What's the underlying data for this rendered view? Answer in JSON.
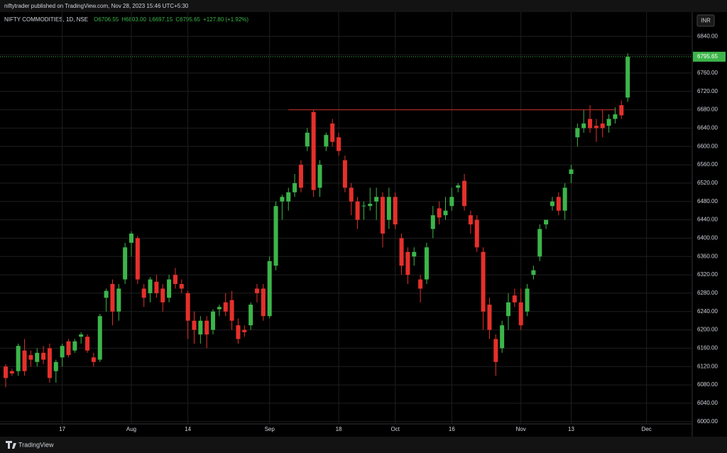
{
  "header": "niftytrader published on TradingView.com, Nov 28, 2023 15:46 UTC+5:30",
  "footer": "TradingView",
  "chart_data": {
    "type": "candlestick",
    "symbol": "NIFTY COMMODITIES, 1D, NSE",
    "ohlc_labels": [
      "O6706.55",
      "H6803.00",
      "L6697.15",
      "C6795.65",
      "+127.80 (+1.92%)"
    ],
    "currency": "INR",
    "up_color": "#3cb54a",
    "down_color": "#e5302b",
    "open": [
      6120,
      6110,
      6110,
      6155,
      6145,
      6130,
      6150,
      6160,
      6110,
      6140,
      6175,
      6155,
      6185,
      6185,
      6140,
      6135,
      6270,
      6300,
      6240,
      6310,
      6390,
      6400,
      6290,
      6280,
      6305,
      6290,
      6270,
      6320,
      6300,
      6280,
      6220,
      6190,
      6220,
      6200,
      6245,
      6260,
      6265,
      6210,
      6200,
      6210,
      6290,
      6290,
      6230,
      6340,
      6480,
      6480,
      6500,
      6560,
      6600,
      6675,
      6510,
      6600,
      6650,
      6620,
      6570,
      6510,
      6480,
      6470,
      6470,
      6480,
      6490,
      6440,
      6490,
      6400,
      6370,
      6360,
      6310,
      6310,
      6420,
      6465,
      6450,
      6470,
      6510,
      6525,
      6450,
      6440,
      6370,
      6255,
      6180,
      6160,
      6230,
      6275,
      6260,
      6240,
      6320,
      6360,
      6430,
      6470,
      6490,
      6460,
      6540,
      6620,
      6640,
      6660,
      6645,
      6650,
      6645,
      6660,
      6690,
      6706.55
    ],
    "high": [
      6125,
      6115,
      6170,
      6180,
      6155,
      6160,
      6165,
      6170,
      6135,
      6170,
      6180,
      6180,
      6195,
      6190,
      6150,
      6235,
      6290,
      6310,
      6300,
      6390,
      6415,
      6405,
      6300,
      6315,
      6320,
      6300,
      6320,
      6335,
      6310,
      6285,
      6240,
      6230,
      6230,
      6245,
      6255,
      6280,
      6285,
      6225,
      6210,
      6260,
      6300,
      6300,
      6360,
      6480,
      6495,
      6510,
      6540,
      6570,
      6640,
      6680,
      6570,
      6630,
      6660,
      6630,
      6580,
      6520,
      6490,
      6480,
      6510,
      6510,
      6500,
      6510,
      6500,
      6410,
      6380,
      6380,
      6320,
      6390,
      6470,
      6480,
      6490,
      6510,
      6520,
      6540,
      6460,
      6450,
      6380,
      6270,
      6190,
      6220,
      6280,
      6290,
      6290,
      6300,
      6340,
      6430,
      6440,
      6490,
      6500,
      6520,
      6560,
      6650,
      6680,
      6690,
      6660,
      6680,
      6670,
      6685,
      6700,
      6803
    ],
    "low": [
      6075,
      6100,
      6100,
      6100,
      6120,
      6120,
      6125,
      6085,
      6085,
      6120,
      6140,
      6150,
      6170,
      6150,
      6120,
      6130,
      6240,
      6210,
      6220,
      6300,
      6360,
      6300,
      6250,
      6260,
      6270,
      6240,
      6260,
      6290,
      6280,
      6180,
      6170,
      6170,
      6160,
      6190,
      6230,
      6230,
      6200,
      6170,
      6185,
      6200,
      6260,
      6220,
      6225,
      6330,
      6440,
      6460,
      6490,
      6500,
      6590,
      6490,
      6490,
      6590,
      6600,
      6580,
      6500,
      6450,
      6420,
      6440,
      6460,
      6440,
      6380,
      6420,
      6420,
      6320,
      6300,
      6340,
      6260,
      6300,
      6400,
      6430,
      6440,
      6460,
      6500,
      6460,
      6410,
      6370,
      6200,
      6180,
      6100,
      6150,
      6200,
      6250,
      6200,
      6230,
      6310,
      6350,
      6420,
      6460,
      6450,
      6440,
      6520,
      6600,
      6630,
      6630,
      6610,
      6620,
      6630,
      6650,
      6660,
      6697.15
    ],
    "close": [
      6095,
      6105,
      6165,
      6110,
      6135,
      6150,
      6135,
      6095,
      6130,
      6165,
      6145,
      6175,
      6190,
      6155,
      6130,
      6230,
      6285,
      6240,
      6290,
      6380,
      6410,
      6310,
      6270,
      6310,
      6280,
      6260,
      6310,
      6300,
      6290,
      6220,
      6200,
      6220,
      6190,
      6240,
      6250,
      6240,
      6220,
      6180,
      6195,
      6255,
      6280,
      6230,
      6350,
      6470,
      6490,
      6500,
      6520,
      6510,
      6630,
      6505,
      6560,
      6625,
      6610,
      6590,
      6510,
      6480,
      6440,
      6471,
      6475,
      6490,
      6410,
      6490,
      6430,
      6340,
      6320,
      6370,
      6290,
      6380,
      6450,
      6445,
      6460,
      6490,
      6515,
      6470,
      6430,
      6380,
      6240,
      6200,
      6130,
      6210,
      6260,
      6260,
      6210,
      6290,
      6330,
      6420,
      6440,
      6480,
      6460,
      6510,
      6550,
      6640,
      6650,
      6640,
      6640,
      6640,
      6660,
      6670,
      6667.85,
      6795.65
    ],
    "level_line": {
      "value": 6680,
      "start": 45,
      "end": 97,
      "color": "#c8302c"
    },
    "xticks": [
      {
        "value": 9,
        "label": "17"
      },
      {
        "value": 20,
        "label": "Aug"
      },
      {
        "value": 29,
        "label": "14"
      },
      {
        "value": 42,
        "label": "Sep"
      },
      {
        "value": 53,
        "label": "18"
      },
      {
        "value": 62,
        "label": "Oct"
      },
      {
        "value": 71,
        "label": "16"
      },
      {
        "value": 82,
        "label": "Nov"
      },
      {
        "value": 90,
        "label": "13"
      },
      {
        "value": 102,
        "label": "Dec"
      }
    ],
    "ylim": [
      5995,
      6893
    ],
    "yticks": [
      {
        "value": 6000,
        "label": "6000.00"
      },
      {
        "value": 6040,
        "label": "6040.00"
      },
      {
        "value": 6080,
        "label": "6080.00"
      },
      {
        "value": 6120,
        "label": "6120.00"
      },
      {
        "value": 6160,
        "label": "6160.00"
      },
      {
        "value": 6200,
        "label": "6200.00"
      },
      {
        "value": 6240,
        "label": "6240.00"
      },
      {
        "value": 6280,
        "label": "6280.00"
      },
      {
        "value": 6320,
        "label": "6320.00"
      },
      {
        "value": 6360,
        "label": "6360.00"
      },
      {
        "value": 6400,
        "label": "6400.00"
      },
      {
        "value": 6440,
        "label": "6440.00"
      },
      {
        "value": 6480,
        "label": "6480.00"
      },
      {
        "value": 6520,
        "label": "6520.00"
      },
      {
        "value": 6560,
        "label": "6560.00"
      },
      {
        "value": 6600,
        "label": "6600.00"
      },
      {
        "value": 6640,
        "label": "6640.00"
      },
      {
        "value": 6680,
        "label": "6680.00"
      },
      {
        "value": 6720,
        "label": "6720.00"
      },
      {
        "value": 6760,
        "label": "6760.00"
      },
      {
        "value": 6800,
        "label": "6800.00"
      },
      {
        "value": 6840,
        "label": "6840.00"
      }
    ],
    "grid": true
  }
}
